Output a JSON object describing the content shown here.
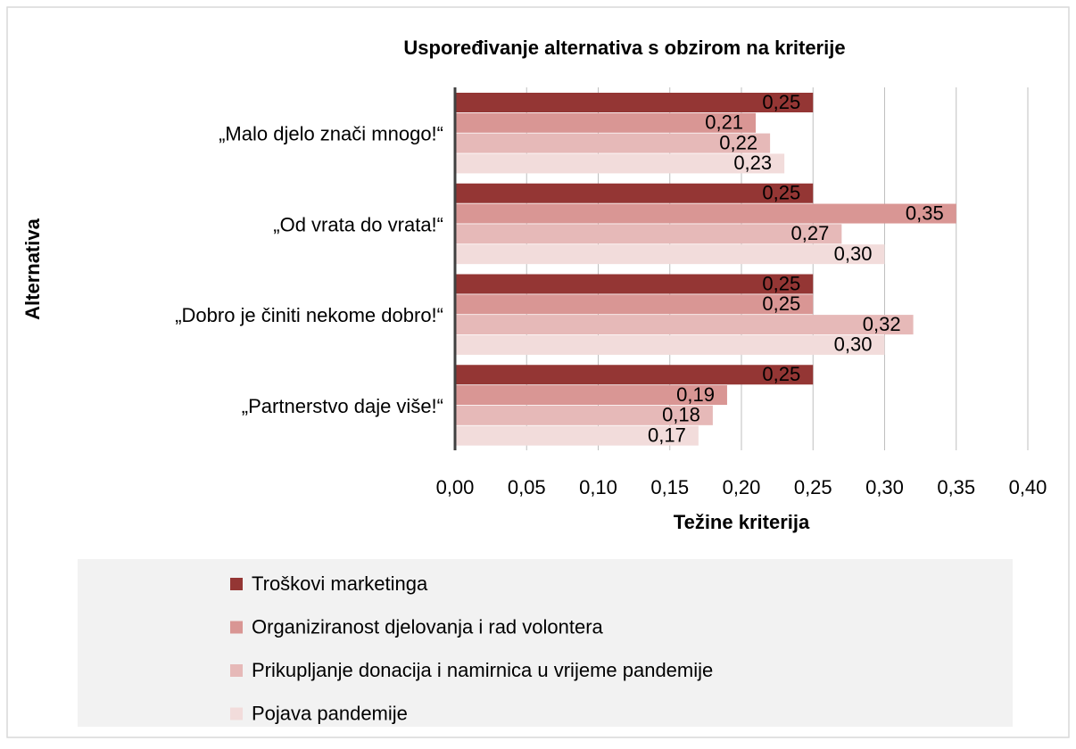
{
  "chart_data": {
    "type": "hbar",
    "title": "Uspoređivanje alternativa s obzirom na kriterije",
    "x_label": "Težine kriterija",
    "y_label": "Alternativa",
    "categories": [
      "„Malo djelo znači mnogo!“",
      "„Od vrata do vrata!“",
      "„Dobro je činiti nekome dobro!“",
      "„Partnerstvo daje više!“"
    ],
    "series": [
      {
        "name": "Troškovi marketinga",
        "color": "#943634",
        "values": [
          0.25,
          0.25,
          0.25,
          0.25
        ],
        "value_labels": [
          "0,25",
          "0,25",
          "0,25",
          "0,25"
        ]
      },
      {
        "name": "Organiziranost djelovanja i rad volontera",
        "color": "#d99694",
        "values": [
          0.21,
          0.35,
          0.25,
          0.19
        ],
        "value_labels": [
          "0,21",
          "0,35",
          "0,25",
          "0,19"
        ]
      },
      {
        "name": "Prikupljanje donacija i namirnica u vrijeme pandemije",
        "color": "#e6b9b8",
        "values": [
          0.22,
          0.27,
          0.32,
          0.18
        ],
        "value_labels": [
          "0,22",
          "0,27",
          "0,32",
          "0,18"
        ]
      },
      {
        "name": "Pojava pandemije",
        "color": "#f2dcdb",
        "values": [
          0.23,
          0.3,
          0.3,
          0.17
        ],
        "value_labels": [
          "0,23",
          "0,30",
          "0,30",
          "0,17"
        ]
      }
    ],
    "xlim": [
      0,
      0.4
    ],
    "xticks": [
      {
        "value": 0,
        "label": "0,00"
      },
      {
        "value": 0.05,
        "label": "0,05"
      },
      {
        "value": 0.1,
        "label": "0,10"
      },
      {
        "value": 0.15,
        "label": "0,15"
      },
      {
        "value": 0.2,
        "label": "0,20"
      },
      {
        "value": 0.25,
        "label": "0,25"
      },
      {
        "value": 0.3,
        "label": "0,30"
      },
      {
        "value": 0.35,
        "label": "0,35"
      },
      {
        "value": 0.4,
        "label": "0,40"
      }
    ],
    "grid": true,
    "legend": "bottom"
  }
}
